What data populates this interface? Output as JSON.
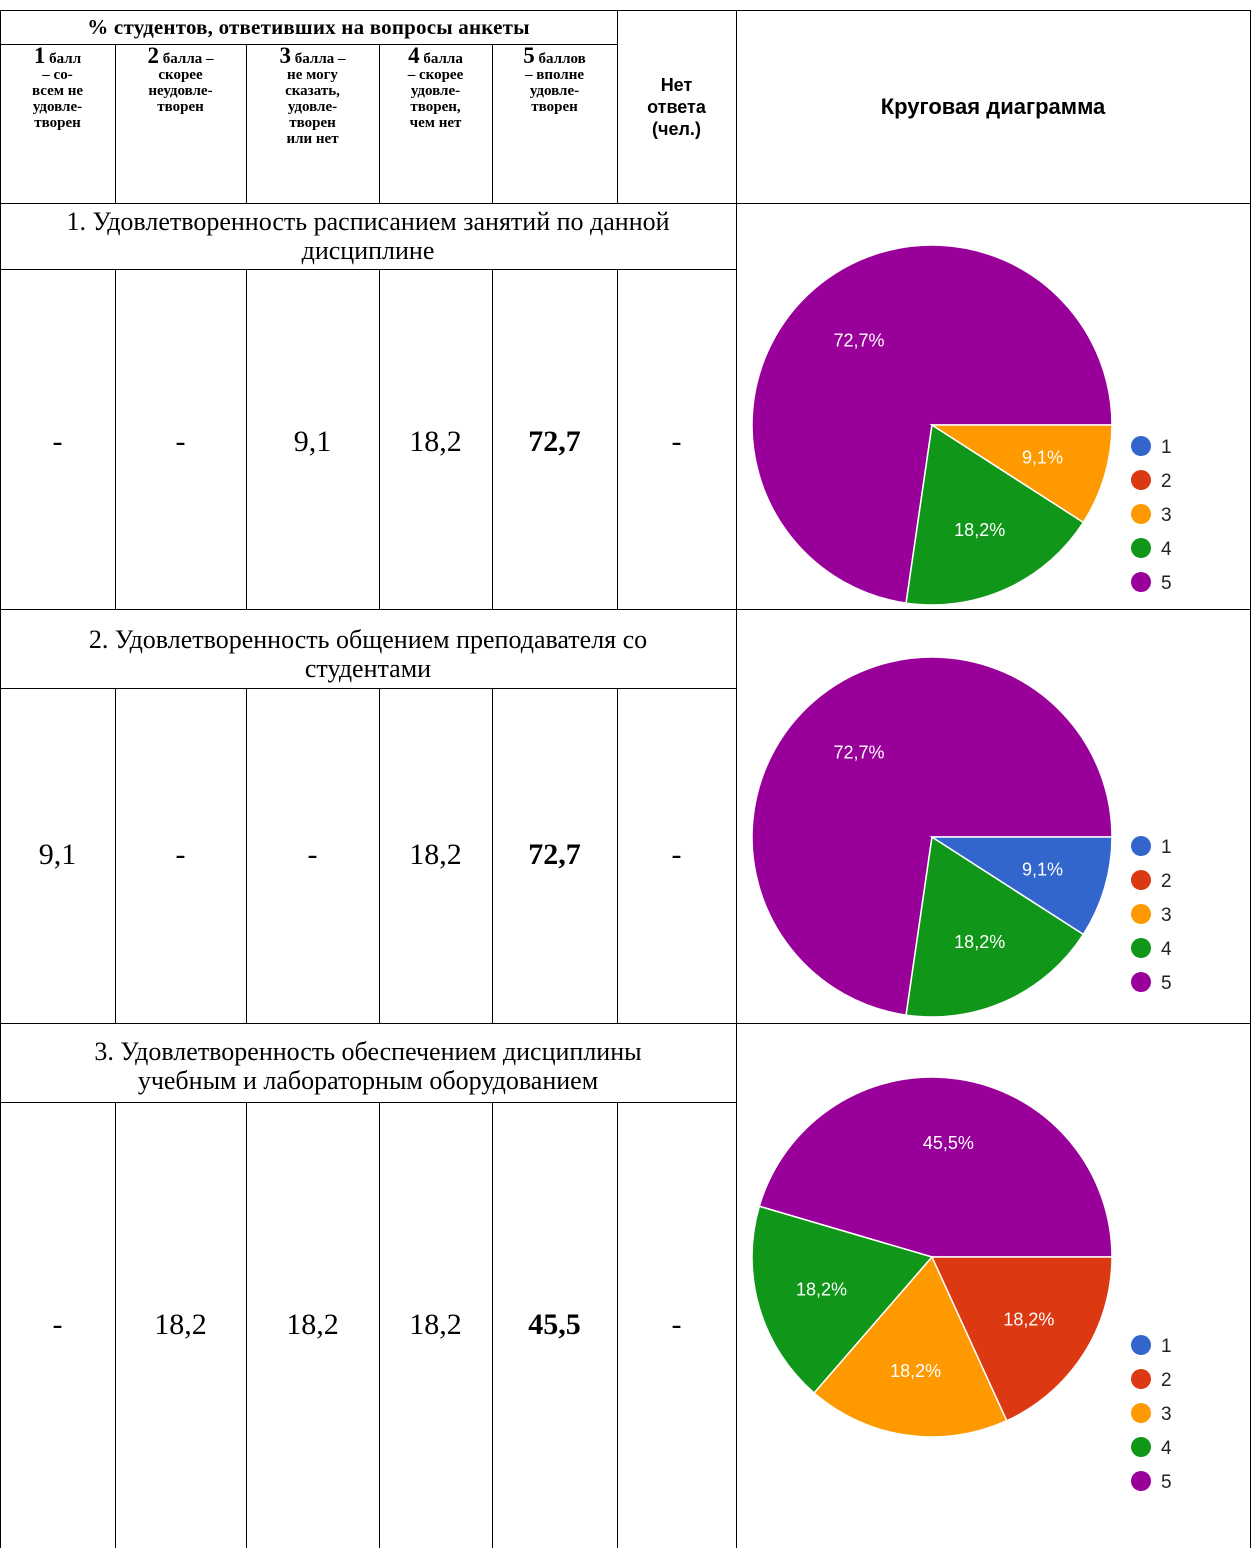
{
  "header": {
    "top_caption": "% студентов, ответивших на вопросы анкеты",
    "columns": [
      {
        "num": "1",
        "rest": " балл\n– со-\nвсем не\nудовле-\nтворен"
      },
      {
        "num": "2",
        "rest": " балла –\nскорее\nнеудовле-\nтворен"
      },
      {
        "num": "3",
        "rest": " балла –\nне могу\nсказать,\nудовле-\nтворен\nили нет"
      },
      {
        "num": "4",
        "rest": " балла\n– скорее\nудовле-\nтворен,\nчем нет"
      },
      {
        "num": "5",
        "rest": " баллов\n– вполне\nудовле-\nтворен"
      }
    ],
    "no_answer": "Нет\nответа\n(чел.)",
    "pie_header": "Круговая диаграмма"
  },
  "questions": [
    {
      "title": "1. Удовлетворенность расписанием занятий по данной\nдисциплине",
      "values": [
        "-",
        "-",
        "9,1",
        "18,2",
        "72,7",
        "-"
      ]
    },
    {
      "title": "2. Удовлетворенность общением преподавателя со\nстудентами",
      "values": [
        "9,1",
        "-",
        "-",
        "18,2",
        "72,7",
        "-"
      ]
    },
    {
      "title": "3. Удовлетворенность обеспечением дисциплины\nучебным и лабораторным оборудованием",
      "values": [
        "-",
        "18,2",
        "18,2",
        "18,2",
        "45,5",
        "-"
      ]
    }
  ],
  "chart_data": [
    {
      "type": "pie",
      "categories": [
        "1",
        "2",
        "3",
        "4",
        "5"
      ],
      "values": [
        0,
        0,
        9.1,
        18.2,
        72.7
      ],
      "labels": [
        "",
        "",
        "9,1%",
        "18,2%",
        "72,7%"
      ],
      "legend": "right"
    },
    {
      "type": "pie",
      "categories": [
        "1",
        "2",
        "3",
        "4",
        "5"
      ],
      "values": [
        9.1,
        0,
        0,
        18.2,
        72.7
      ],
      "labels": [
        "9,1%",
        "",
        "",
        "18,2%",
        "72,7%"
      ],
      "legend": "right"
    },
    {
      "type": "pie",
      "categories": [
        "1",
        "2",
        "3",
        "4",
        "5"
      ],
      "values": [
        0,
        18.2,
        18.2,
        18.2,
        45.5
      ],
      "labels": [
        "",
        "18,2%",
        "18,2%",
        "18,2%",
        "45,5%"
      ],
      "legend": "right"
    }
  ],
  "colors": {
    "1": "#3366cc",
    "2": "#dc3912",
    "3": "#ff9900",
    "4": "#109618",
    "5": "#990099"
  }
}
